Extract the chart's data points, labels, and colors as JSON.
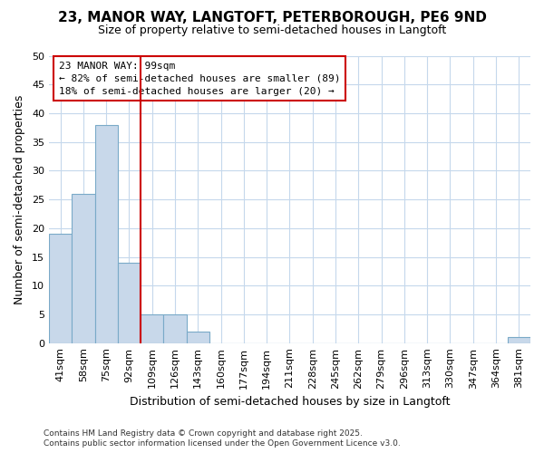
{
  "title1": "23, MANOR WAY, LANGTOFT, PETERBOROUGH, PE6 9ND",
  "title2": "Size of property relative to semi-detached houses in Langtoft",
  "xlabel": "Distribution of semi-detached houses by size in Langtoft",
  "ylabel": "Number of semi-detached properties",
  "categories": [
    "41sqm",
    "58sqm",
    "75sqm",
    "92sqm",
    "109sqm",
    "126sqm",
    "143sqm",
    "160sqm",
    "177sqm",
    "194sqm",
    "211sqm",
    "228sqm",
    "245sqm",
    "262sqm",
    "279sqm",
    "296sqm",
    "313sqm",
    "330sqm",
    "347sqm",
    "364sqm",
    "381sqm"
  ],
  "values": [
    19,
    26,
    38,
    14,
    5,
    5,
    2,
    0,
    0,
    0,
    0,
    0,
    0,
    0,
    0,
    0,
    0,
    0,
    0,
    0,
    1
  ],
  "bar_color": "#c8d8ea",
  "bar_edge_color": "#7aaac8",
  "vline_x": 3.5,
  "vline_color": "#cc0000",
  "ann_line1": "23 MANOR WAY: 99sqm",
  "ann_line2": "← 82% of semi-detached houses are smaller (89)",
  "ann_line3": "18% of semi-detached houses are larger (20) →",
  "ann_facecolor": "#ffffff",
  "ann_edgecolor": "#cc0000",
  "ylim": [
    0,
    50
  ],
  "yticks": [
    0,
    5,
    10,
    15,
    20,
    25,
    30,
    35,
    40,
    45,
    50
  ],
  "grid_color": "#c5d8ec",
  "bg_color": "#ffffff",
  "plot_bg_color": "#ffffff",
  "footer1": "Contains HM Land Registry data © Crown copyright and database right 2025.",
  "footer2": "Contains public sector information licensed under the Open Government Licence v3.0.",
  "title1_fontsize": 11,
  "title2_fontsize": 9,
  "axis_label_fontsize": 9,
  "tick_fontsize": 8,
  "ann_fontsize": 8,
  "footer_fontsize": 6.5
}
